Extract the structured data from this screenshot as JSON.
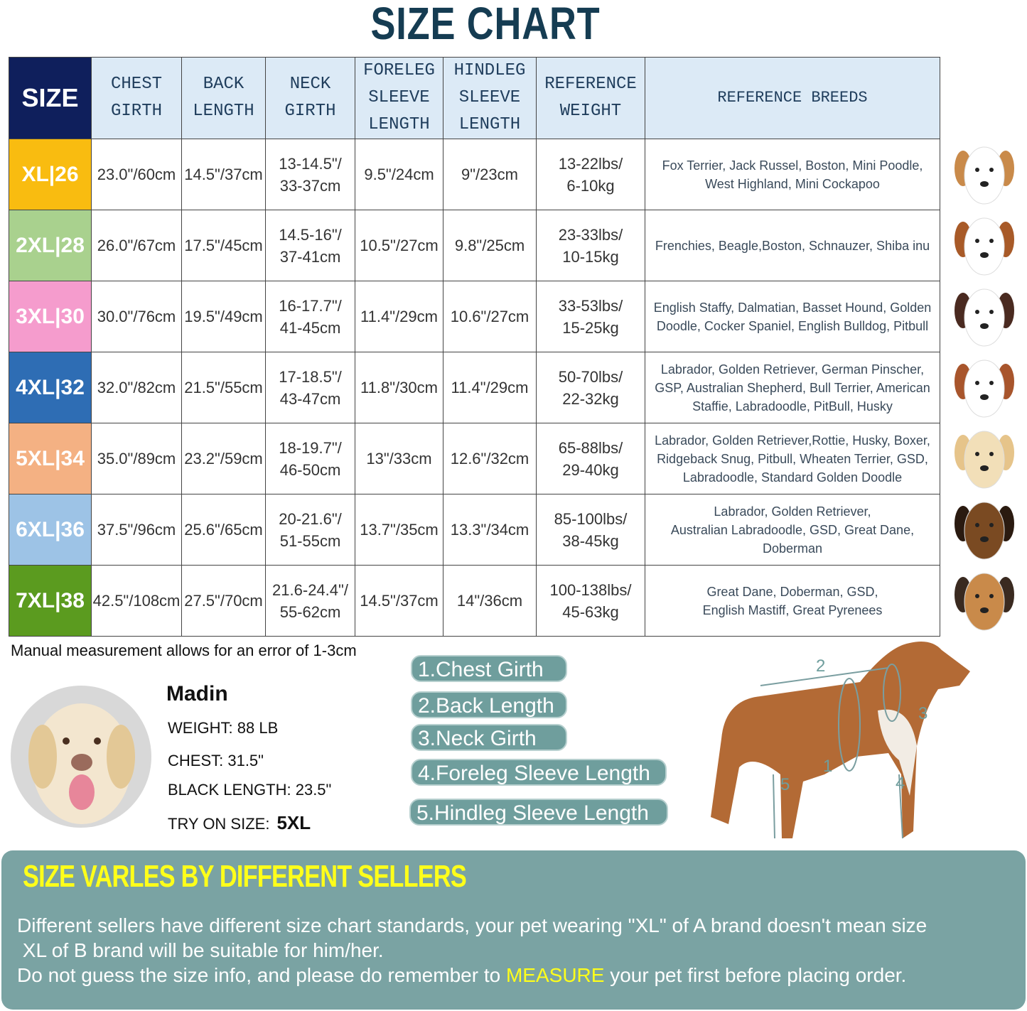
{
  "title": "SIZE CHART",
  "table": {
    "headers": [
      [
        "SIZE"
      ],
      [
        "CHEST",
        "GIRTH"
      ],
      [
        "BACK",
        "LENGTH"
      ],
      [
        "NECK",
        "GIRTH"
      ],
      [
        "FORELEG",
        "SLEEVE",
        "LENGTH"
      ],
      [
        "HINDLEG",
        "SLEEVE",
        "LENGTH"
      ],
      [
        "REFERENCE",
        "WEIGHT"
      ],
      [
        "REFERENCE BREEDS"
      ]
    ],
    "rows": [
      {
        "size": "XL|26",
        "color": "#f9bc10",
        "chest": "23.0\"/60cm",
        "back": "14.5\"/37cm",
        "neck": [
          "13-14.5\"/",
          "33-37cm"
        ],
        "foreleg": "9.5\"/24cm",
        "hindleg": "9\"/23cm",
        "weight": [
          "13-22lbs/",
          "6-10kg"
        ],
        "breeds": [
          "Fox Terrier, Jack Russel, Boston, Mini Poodle,",
          "West Highland, Mini Cockapoo"
        ],
        "dog_icon": "terrier-head-icon"
      },
      {
        "size": "2XL|28",
        "color": "#a9d18e",
        "chest": "26.0\"/67cm",
        "back": "17.5\"/45cm",
        "neck": [
          "14.5-16\"/",
          "37-41cm"
        ],
        "foreleg": "10.5\"/27cm",
        "hindleg": "9.8\"/25cm",
        "weight": [
          "23-33lbs/",
          "10-15kg"
        ],
        "breeds": [
          "Frenchies, Beagle,Boston, Schnauzer, Shiba inu"
        ],
        "dog_icon": "beagle-head-icon"
      },
      {
        "size": "3XL|30",
        "color": "#f59ccd",
        "chest": "30.0\"/76cm",
        "back": "19.5\"/49cm",
        "neck": [
          "16-17.7\"/",
          "41-45cm"
        ],
        "foreleg": "11.4\"/29cm",
        "hindleg": "10.6\"/27cm",
        "weight": [
          "33-53lbs/",
          "15-25kg"
        ],
        "breeds": [
          "English Staffy, Dalmatian, Basset Hound, Golden",
          "Doodle, Cocker Spaniel, English Bulldog, Pitbull"
        ],
        "dog_icon": "dalmatian-head-icon"
      },
      {
        "size": "4XL|32",
        "color": "#2e6db4",
        "chest": "32.0\"/82cm",
        "back": "21.5\"/55cm",
        "neck": [
          "17-18.5\"/",
          "43-47cm"
        ],
        "foreleg": "11.8\"/30cm",
        "hindleg": "11.4\"/29cm",
        "weight": [
          "50-70lbs/",
          "22-32kg"
        ],
        "breeds": [
          "Labrador, Golden Retriever, German Pinscher,",
          "GSP, Australian Shepherd, Bull Terrier, American",
          "Staffie, Labradoodle, PitBull, Husky"
        ],
        "dog_icon": "staffie-head-icon"
      },
      {
        "size": "5XL|34",
        "color": "#f4b183",
        "chest": "35.0\"/89cm",
        "back": "23.2\"/59cm",
        "neck": [
          "18-19.7\"/",
          "46-50cm"
        ],
        "foreleg": "13\"/33cm",
        "hindleg": "12.6\"/32cm",
        "weight": [
          "65-88lbs/",
          "29-40kg"
        ],
        "breeds": [
          "Labrador, Golden Retriever,Rottie, Husky, Boxer,",
          "Ridgeback Snug, Pitbull, Wheaten Terrier, GSD,",
          "Labradoodle,  Standard Golden Doodle"
        ],
        "dog_icon": "labrador-head-icon"
      },
      {
        "size": "6XL|36",
        "color": "#9dc3e6",
        "chest": "37.5\"/96cm",
        "back": "25.6\"/65cm",
        "neck": [
          "20-21.6\"/",
          "51-55cm"
        ],
        "foreleg": "13.7\"/35cm",
        "hindleg": "13.3\"/34cm",
        "weight": [
          "85-100lbs/",
          "38-45kg"
        ],
        "breeds": [
          "Labrador, Golden Retriever,",
          "Australian Labradoodle, GSD, Great Dane,",
          "Doberman"
        ],
        "dog_icon": "shepherd-head-icon"
      },
      {
        "size": "7XL|38",
        "color": "#5b9b1f",
        "chest": "42.5\"/108cm",
        "back": "27.5\"/70cm",
        "neck": [
          "21.6-24.4\"/",
          "55-62cm"
        ],
        "foreleg": "14.5\"/37cm",
        "hindleg": "14\"/36cm",
        "weight": [
          "100-138lbs/",
          "45-63kg"
        ],
        "breeds": [
          "Great Dane, Doberman, GSD,",
          "English Mastiff, Great Pyrenees"
        ],
        "dog_icon": "mastiff-head-icon"
      }
    ]
  },
  "note": "Manual measurement allows for an error of 1-3cm",
  "example": {
    "name": "Madin",
    "weight": "WEIGHT: 88 LB",
    "chest": "CHEST: 31.5\"",
    "back": "BLACK LENGTH: 23.5\"",
    "try_label": "TRY ON SIZE:",
    "try_value": "5XL"
  },
  "measurements": [
    "1.Chest Girth",
    "2.Back Length",
    "3.Neck Girth",
    "4.Foreleg Sleeve Length",
    "5.Hindleg Sleeve Length"
  ],
  "diagram_labels": [
    "1",
    "2",
    "3",
    "4",
    "5"
  ],
  "notice": {
    "title": "SIZE VARLES BY DIFFERENT SELLERS",
    "line1": "Different sellers have different size chart standards, your pet wearing \"XL\" of A brand doesn't mean size",
    "line2": " XL of B brand will be suitable for him/her.",
    "line3_pre": "Do not guess the size info, and please do remember to ",
    "line3_hl": "MEASURE",
    "line3_post": " your pet first before placing order."
  },
  "colors": {
    "header_navy": "#0f1f5c",
    "header_bg": "#dceaf6",
    "panel": "#7aa3a3",
    "highlight": "#ffff1a",
    "pill": "#6f9e9d"
  }
}
